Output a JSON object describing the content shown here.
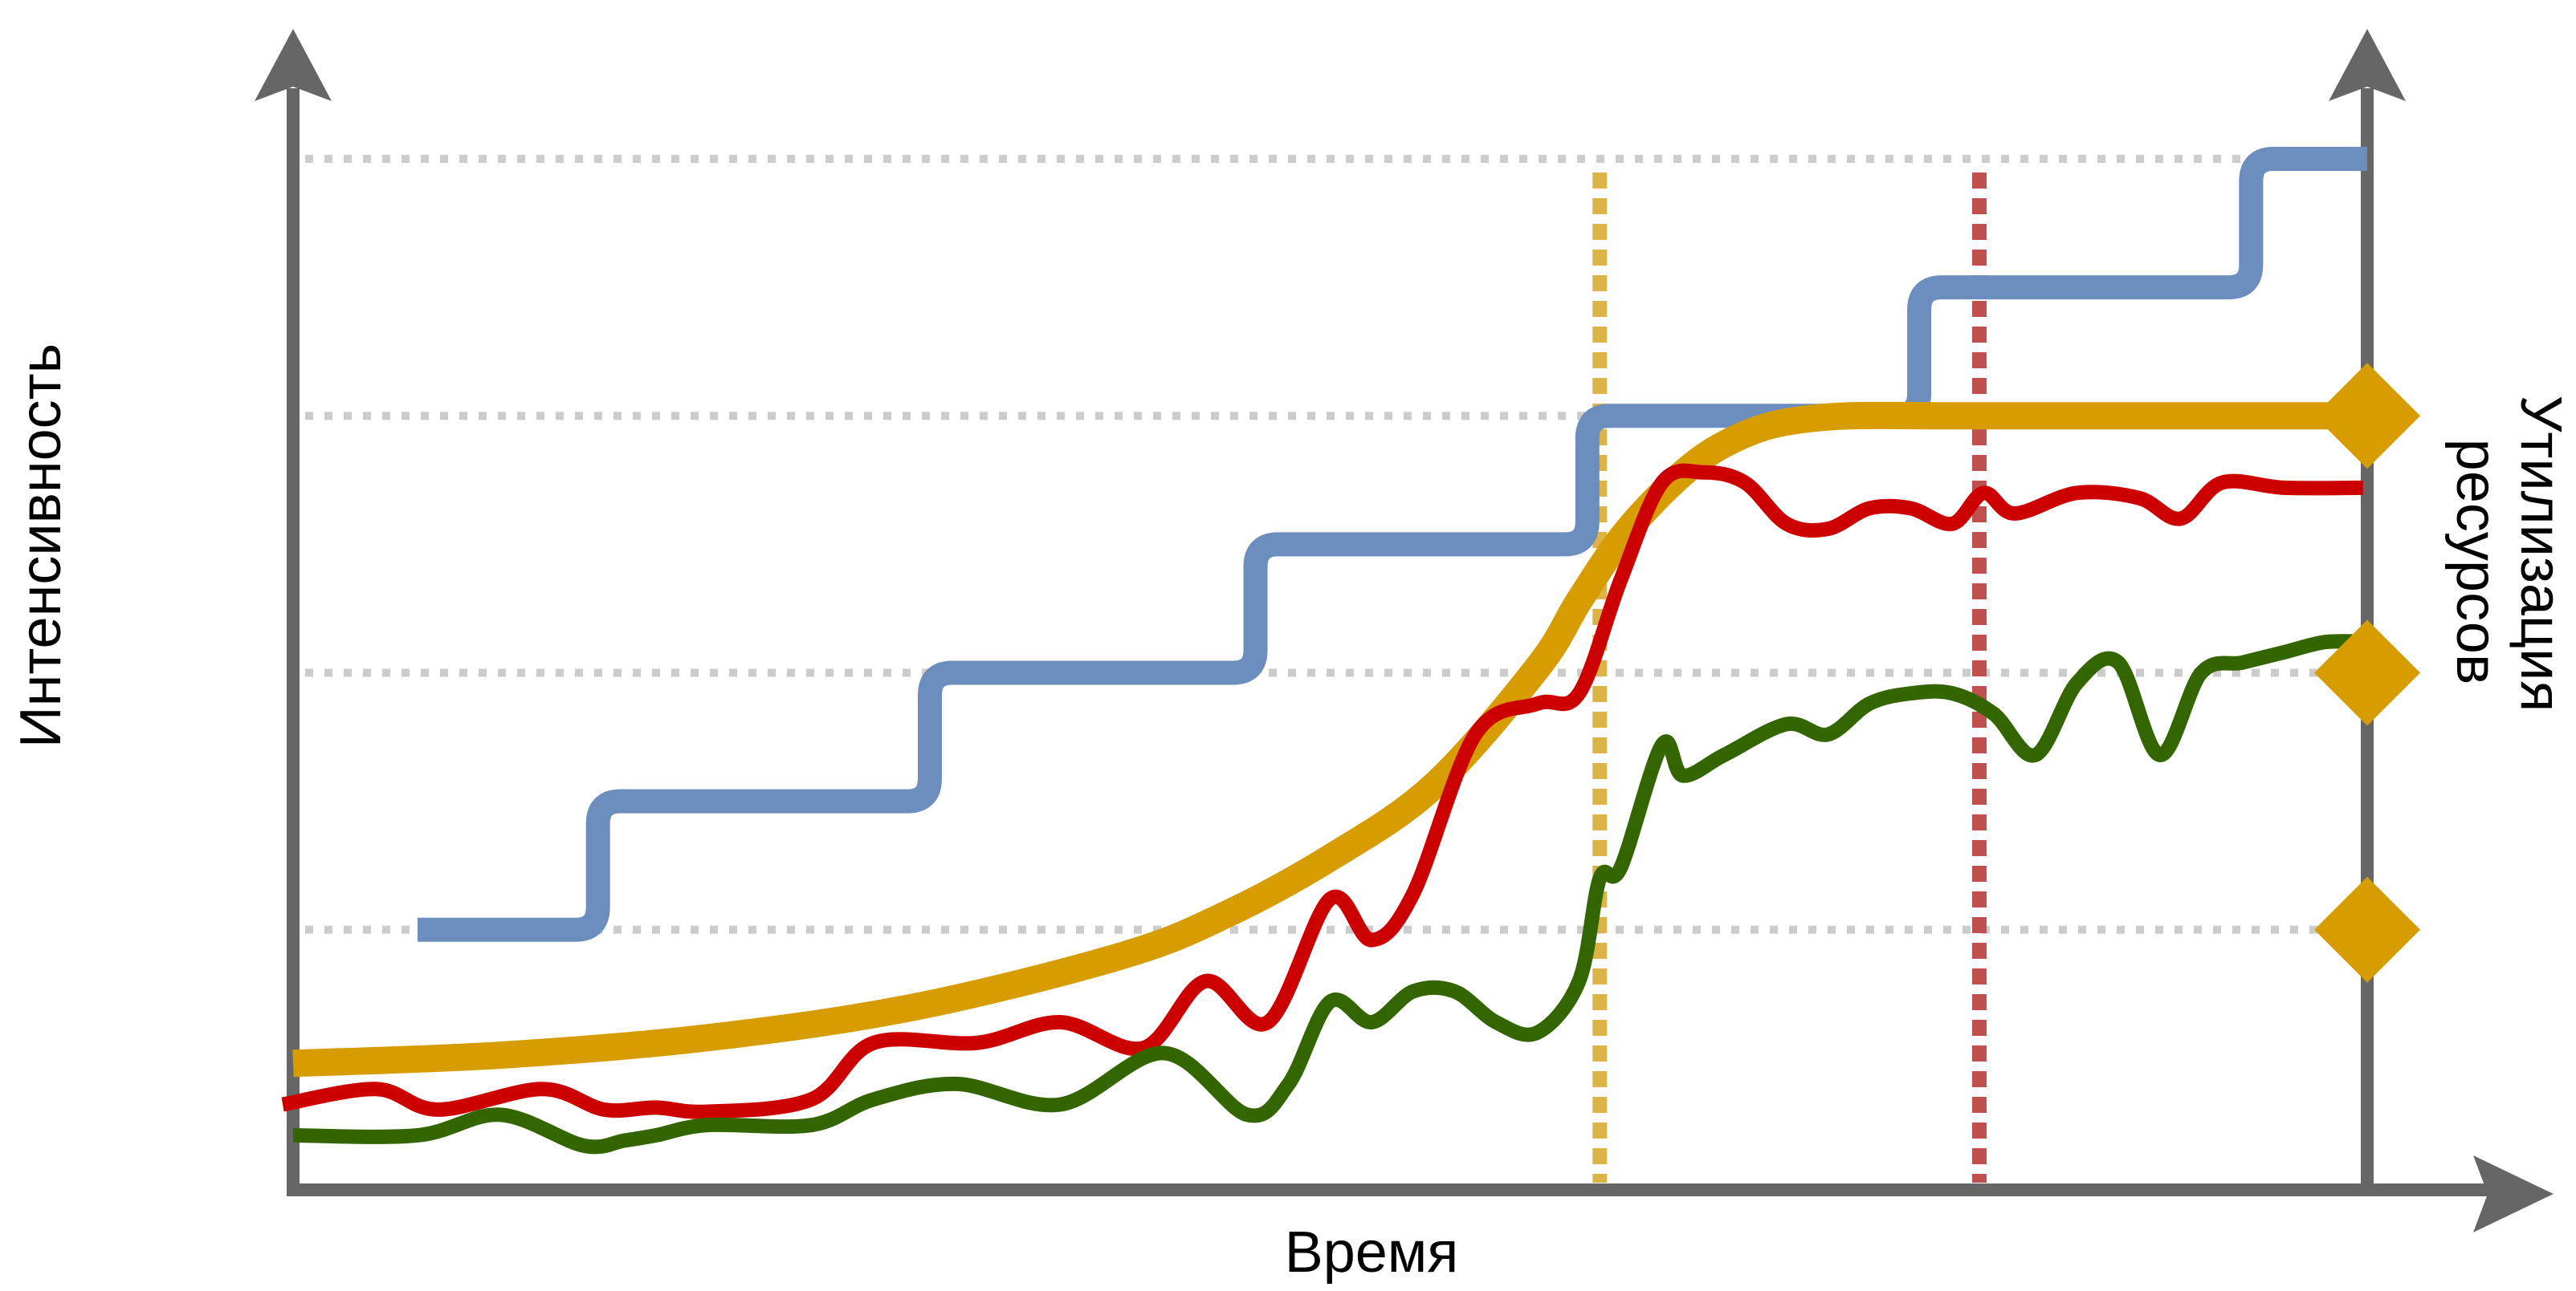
{
  "chart_data": {
    "type": "line",
    "title": "",
    "xlabel": "Время",
    "ylabel_left": "Интенсивность",
    "ylabel_right": "Утилизация ресурсов",
    "grid": "horizontal dotted at 4 levels",
    "xlim": [
      0,
      100
    ],
    "ylim": [
      0,
      100
    ],
    "levels": [
      25,
      50,
      75,
      100
    ],
    "markers": {
      "description": "diamond markers on right axis",
      "values": [
        25,
        50,
        75
      ],
      "color": "#d69c00"
    },
    "vlines": [
      {
        "x": 63,
        "color": "#dcb347"
      },
      {
        "x": 81.3,
        "color": "#c0504d"
      }
    ],
    "colors": {
      "axis": "#666666",
      "grid": "#cccccc",
      "blue": "#6c8ebf",
      "gold": "#d69c00",
      "red": "#cc0000",
      "green": "#336600"
    },
    "series": [
      {
        "color": "#6c8ebf",
        "style": "step",
        "x": [
          6,
          14.7,
          30.7,
          46.4,
          62.4,
          78.4,
          94.4,
          100
        ],
        "y": [
          25,
          37.5,
          50,
          62.5,
          75,
          87.5,
          100,
          100
        ]
      },
      {
        "color": "#d69c00",
        "style": "sigmoid",
        "x": [
          0,
          10,
          20,
          30,
          40,
          45,
          50,
          55,
          60,
          62,
          64,
          66,
          68,
          70,
          72,
          75,
          80,
          90,
          100
        ],
        "y": [
          12,
          12.8,
          14.5,
          17.5,
          22.5,
          26.5,
          32,
          39,
          50.5,
          57,
          63,
          67.5,
          71,
          73.2,
          74.4,
          75,
          75,
          75,
          75
        ]
      },
      {
        "color": "#cc0000",
        "style": "line",
        "x": [
          -0.5,
          4,
          7,
          12,
          15,
          17.5,
          20,
          25,
          28,
          33,
          37,
          41,
          44,
          47,
          50,
          52,
          54,
          57,
          60,
          62,
          64,
          66,
          68,
          70,
          72,
          74,
          76,
          78,
          80,
          81.5,
          83,
          86,
          89,
          91,
          93,
          96,
          99.8
        ],
        "y": [
          8,
          9.5,
          7.5,
          9.5,
          7.5,
          7.7,
          7.3,
          8.5,
          14,
          14,
          16,
          13.5,
          20,
          16,
          28,
          24,
          28.5,
          44,
          47,
          48,
          59,
          68.5,
          69.5,
          68.5,
          64.5,
          64,
          66,
          66,
          64.5,
          67.5,
          65.5,
          67.5,
          67,
          65,
          68.5,
          68,
          68
        ]
      },
      {
        "color": "#336600",
        "style": "line",
        "x": [
          0,
          6,
          10,
          14,
          16,
          17.5,
          20,
          25,
          28,
          32,
          37,
          42,
          46,
          48,
          50,
          52,
          54,
          56,
          58,
          60,
          62,
          63,
          64,
          66,
          67,
          69,
          72,
          74,
          76,
          78,
          80,
          82,
          84,
          86,
          88,
          90,
          92,
          94,
          96,
          98,
          100
        ],
        "y": [
          5,
          5,
          7,
          4,
          4.5,
          5,
          6,
          6,
          8.5,
          10,
          8,
          13,
          7,
          10,
          18,
          16,
          19,
          19,
          16,
          15,
          20,
          30,
          31,
          43,
          40,
          42,
          45,
          44,
          47,
          48,
          48,
          46,
          42,
          49,
          51,
          42,
          50,
          51,
          52,
          53,
          53
        ]
      }
    ]
  }
}
